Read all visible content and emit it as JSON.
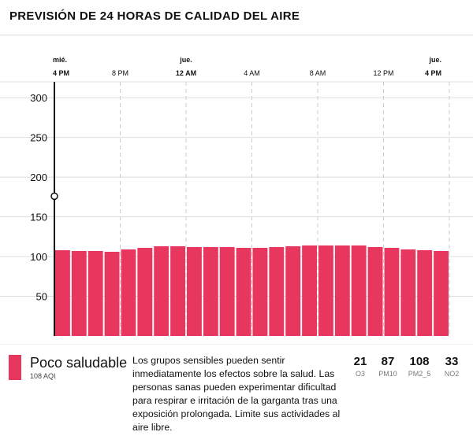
{
  "header": {
    "title": "Previsión de 24 horas de calidad del aire"
  },
  "colors": {
    "bar": "#e8375e",
    "grid": "#dddddd",
    "dash": "#cccccc",
    "axis": "#111111"
  },
  "chart_data": {
    "type": "bar",
    "title": "Previsión de 24 horas de calidad del aire",
    "xlabel": "",
    "ylabel": "",
    "ylim": [
      0,
      320
    ],
    "yticks": [
      50,
      100,
      150,
      200,
      250,
      300
    ],
    "grid": true,
    "time_labels": [
      {
        "day": "mié.",
        "time": "4 PM",
        "index": 0,
        "bold": true
      },
      {
        "day": "",
        "time": "8 PM",
        "index": 4,
        "bold": false
      },
      {
        "day": "jue.",
        "time": "12 AM",
        "index": 8,
        "bold": true
      },
      {
        "day": "",
        "time": "4 AM",
        "index": 12,
        "bold": false
      },
      {
        "day": "",
        "time": "8 AM",
        "index": 16,
        "bold": false
      },
      {
        "day": "",
        "time": "12 PM",
        "index": 20,
        "bold": false
      },
      {
        "day": "jue.",
        "time": "4 PM",
        "index": 24,
        "bold": true
      }
    ],
    "values": [
      108,
      107,
      107,
      106,
      109,
      111,
      113,
      113,
      112,
      112,
      112,
      111,
      111,
      112,
      113,
      114,
      114,
      114,
      114,
      112,
      111,
      109,
      108,
      107
    ],
    "current_marker": {
      "index": 0,
      "value": 176
    }
  },
  "footer": {
    "level": "Poco saludable",
    "aqi": "108 AQI",
    "description": "Los grupos sensibles pueden sentir inmediatamente los efectos sobre la salud. Las personas sanas pueden experimentar dificultad para respirar e irritación de la garganta tras una exposición prolongada. Limite sus actividades al aire libre.",
    "pollutants": [
      {
        "value": "21",
        "name": "O3"
      },
      {
        "value": "87",
        "name": "PM10"
      },
      {
        "value": "108",
        "name": "PM2_5"
      },
      {
        "value": "33",
        "name": "NO2"
      }
    ]
  }
}
